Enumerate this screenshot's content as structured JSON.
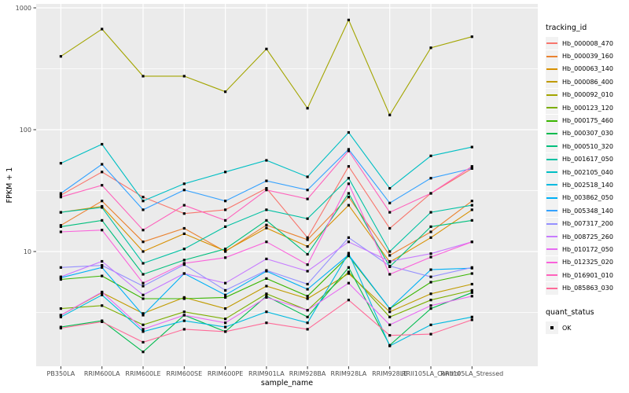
{
  "figure": {
    "bg": "#FFFFFF",
    "panel_bg": "#EBEBEB",
    "grid_color": "#FFFFFF",
    "tick_color": "#333333",
    "tick_label_color": "#4D4D4D",
    "axis_title_color": "#000000",
    "point_color": "#000000"
  },
  "chart_data": {
    "type": "line",
    "title": "",
    "xlabel": "sample_name",
    "ylabel": "FPKM + 1",
    "y_scale": "log10",
    "ylim": [
      1.14,
      1076
    ],
    "y_ticks": [
      1000,
      100,
      10
    ],
    "y_minor_breaks": [
      316.23,
      31.623,
      3.1623
    ],
    "grid": "on",
    "legend_position": "right",
    "legend_title": "tracking_id",
    "categories": [
      "PB350LA",
      "RRIM600LA",
      "RRIM600LE",
      "RRIM600SE",
      "RRIM600PE",
      "RRIM901LA",
      "RRIM928BA",
      "RRIM928LA",
      "RRIM928LE",
      "RRII105LA_Control",
      "RRII105LA_Stressed"
    ],
    "series": [
      {
        "name": "Hb_000008_470",
        "color": "#F8766D",
        "values": [
          29,
          45,
          28,
          20.5,
          22,
          33,
          13,
          50,
          15.5,
          30,
          48
        ]
      },
      {
        "name": "Hb_000039_160",
        "color": "#EA8331",
        "values": [
          16.4,
          26,
          12,
          15.5,
          10,
          16.5,
          12.5,
          28,
          9.3,
          14.5,
          26
        ]
      },
      {
        "name": "Hb_000063_140",
        "color": "#D89000",
        "values": [
          21,
          23.5,
          10,
          14,
          10.1,
          15.6,
          11,
          24,
          8.2,
          13,
          22
        ]
      },
      {
        "name": "Hb_000086_400",
        "color": "#C09B00",
        "values": [
          3.0,
          4.6,
          3.1,
          4.2,
          3.4,
          5.2,
          4.1,
          6.6,
          3.2,
          4.5,
          5.4
        ]
      },
      {
        "name": "Hb_000092_010",
        "color": "#A3A500",
        "values": [
          400,
          670,
          275,
          275,
          205,
          460,
          150,
          795,
          132,
          470,
          580
        ]
      },
      {
        "name": "Hb_000123_120",
        "color": "#7CAE00",
        "values": [
          3.4,
          3.6,
          2.5,
          3.2,
          2.8,
          4.5,
          3.3,
          6.8,
          2.9,
          4.0,
          4.8
        ]
      },
      {
        "name": "Hb_000175_460",
        "color": "#39B600",
        "values": [
          5.9,
          6.3,
          4.1,
          4.1,
          4.2,
          6.0,
          4.3,
          9.2,
          3.4,
          5.6,
          6.6
        ]
      },
      {
        "name": "Hb_000307_030",
        "color": "#00BB4E",
        "values": [
          2.4,
          2.7,
          1.5,
          3.0,
          2.2,
          4.3,
          2.9,
          7.4,
          1.7,
          3.4,
          4.6
        ]
      },
      {
        "name": "Hb_000510_320",
        "color": "#00BF7D",
        "values": [
          16,
          18,
          6.5,
          8.5,
          10.5,
          18,
          9.5,
          30,
          7.5,
          16,
          18
        ]
      },
      {
        "name": "Hb_001617_050",
        "color": "#00C1A3",
        "values": [
          21,
          23,
          8.0,
          10.5,
          16,
          22,
          18.6,
          40,
          10,
          21,
          24
        ]
      },
      {
        "name": "Hb_002105_040",
        "color": "#00BFC4",
        "values": [
          53,
          76,
          26,
          36,
          45,
          56,
          41,
          95,
          33,
          61,
          72
        ]
      },
      {
        "name": "Hb_002518_140",
        "color": "#00BAE0",
        "values": [
          2.9,
          4.4,
          2.2,
          2.7,
          2.4,
          3.2,
          2.6,
          9.7,
          1.68,
          2.5,
          2.9
        ]
      },
      {
        "name": "Hb_003862_050",
        "color": "#00B0F6",
        "values": [
          6.1,
          7.4,
          3.0,
          6.6,
          4.4,
          6.9,
          4.9,
          9.4,
          3.4,
          7.1,
          7.3
        ]
      },
      {
        "name": "Hb_005348_140",
        "color": "#35A2FF",
        "values": [
          30,
          52,
          22,
          32,
          26,
          38,
          32,
          69,
          25,
          40,
          48
        ]
      },
      {
        "name": "Hb_007317_200",
        "color": "#9590FF",
        "values": [
          7.4,
          7.7,
          5.2,
          7.8,
          4.8,
          7.0,
          5.4,
          13,
          7.6,
          6.2,
          7.4
        ]
      },
      {
        "name": "Hb_008725_260",
        "color": "#C77CFF",
        "values": [
          6.2,
          8.3,
          4.4,
          6.6,
          5.5,
          8.7,
          6.9,
          12,
          8.3,
          9.6,
          12
        ]
      },
      {
        "name": "Hb_010172_050",
        "color": "#E76BF3",
        "values": [
          3.0,
          4.65,
          2.3,
          3.0,
          2.6,
          4.2,
          3.3,
          5.5,
          2.5,
          3.6,
          4.3
        ]
      },
      {
        "name": "Hb_012325_020",
        "color": "#FA62DB",
        "values": [
          14.5,
          15,
          5.5,
          8.0,
          8.9,
          12,
          7.8,
          36,
          6.5,
          9.0,
          12
        ]
      },
      {
        "name": "Hb_016901_010",
        "color": "#FF62BC",
        "values": [
          28,
          35,
          15,
          24,
          18,
          32,
          27,
          67,
          21,
          30,
          50
        ]
      },
      {
        "name": "Hb_085863_030",
        "color": "#FF6A98",
        "values": [
          2.35,
          2.65,
          1.8,
          2.3,
          2.2,
          2.6,
          2.3,
          4.0,
          2.05,
          2.1,
          2.75
        ]
      }
    ],
    "quant_legend": {
      "title": "quant_status",
      "items": [
        {
          "label": "OK"
        }
      ]
    }
  }
}
